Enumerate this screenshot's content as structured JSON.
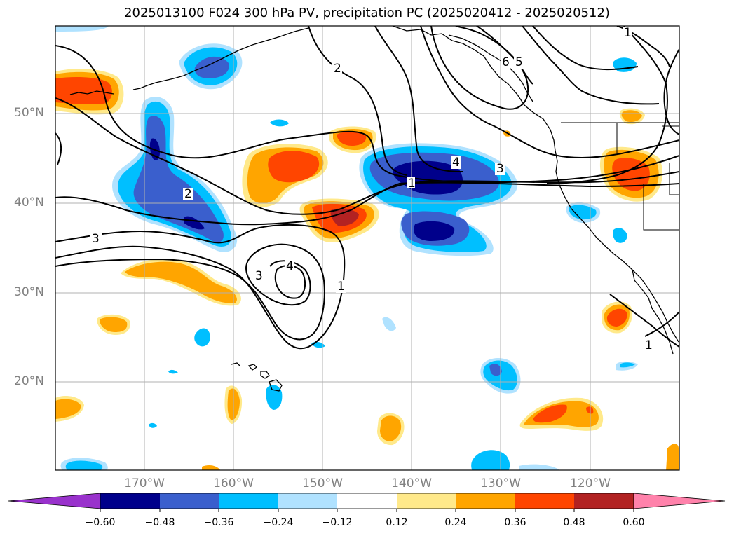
{
  "title": "2025013100 F024 300 hPa PV, precipitation PC (2025020412 - 2025020512)",
  "lat_labels": [
    "50°N",
    "40°N",
    "30°N",
    "20°N"
  ],
  "lon_labels": [
    "170°W",
    "160°W",
    "150°W",
    "140°W",
    "130°W",
    "120°W"
  ],
  "contour_labels": [
    "1",
    "2",
    "3",
    "4",
    "5",
    "6"
  ],
  "colorbar": {
    "ticks": [
      "−0.60",
      "−0.48",
      "−0.36",
      "−0.24",
      "−0.12",
      "0.12",
      "0.24",
      "0.36",
      "0.48",
      "0.60"
    ],
    "colors": [
      "#9932cc",
      "#00008b",
      "#3a5fcd",
      "#00bfff",
      "#b0e2ff",
      "#ffffff",
      "#ffe98a",
      "#ffa500",
      "#ff4500",
      "#b22222",
      "#ff82ab"
    ]
  },
  "colors": {
    "neg_dark": "#00008b",
    "neg_mid": "#3a5fcd",
    "neg_light": "#00bfff",
    "neg_pale": "#b0e2ff",
    "pos_pale": "#ffe98a",
    "pos_light": "#ffa500",
    "pos_mid": "#ff4500",
    "pos_dark": "#b22222",
    "grid": "#b0b0b0",
    "coast": "#000000"
  }
}
